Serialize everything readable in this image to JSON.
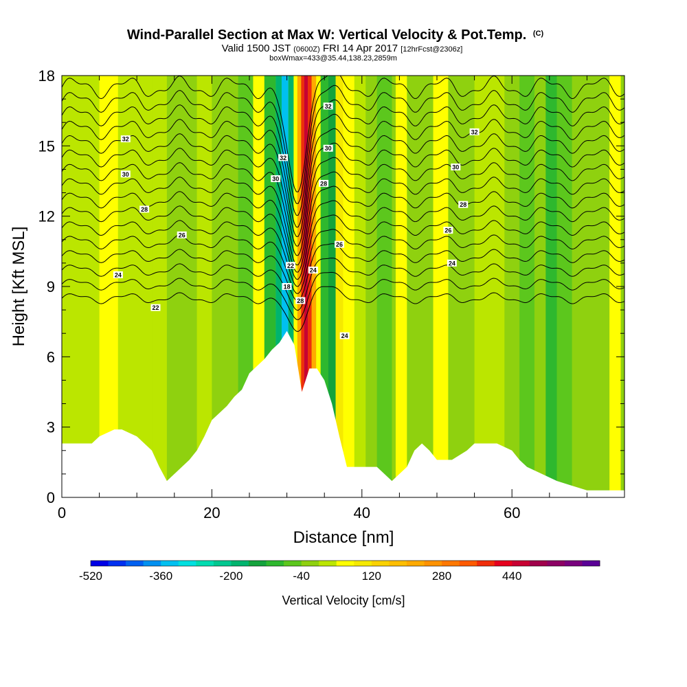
{
  "chart_data": {
    "type": "heatmap",
    "title": "Wind-Parallel Section at Max W: Vertical Velocity & Pot.Temp.",
    "title_mark": "(C)",
    "subtitle": {
      "valid_prefix": "Valid 1500 JST",
      "utc": "(0600Z)",
      "date": "FRI 14 Apr 2017",
      "forecast": "[12hrFcst@2306z]",
      "box": "boxWmax=433@35.44,138.23,2859m"
    },
    "xlabel": "Distance [nm]",
    "ylabel": "Height [Kft MSL]",
    "xlim": [
      0,
      75
    ],
    "ylim": [
      0,
      18
    ],
    "x_ticks": [
      0,
      20,
      40,
      60
    ],
    "y_ticks": [
      0,
      3,
      6,
      9,
      12,
      15,
      18
    ],
    "grid": false,
    "background_field_value": -20,
    "velocity_columns": [
      {
        "x0": 0,
        "x1": 5,
        "w": 20
      },
      {
        "x0": 5,
        "x1": 7.5,
        "w": 40
      },
      {
        "x0": 7.5,
        "x1": 12,
        "w": 10
      },
      {
        "x0": 12,
        "x1": 14,
        "w": 30
      },
      {
        "x0": 18,
        "x1": 20,
        "w": 20
      },
      {
        "x0": 23.5,
        "x1": 25.5,
        "w": -60
      },
      {
        "x0": 25.5,
        "x1": 27,
        "w": 60
      },
      {
        "x0": 27,
        "x1": 28.5,
        "w": -100
      },
      {
        "x0": 28.5,
        "x1": 29.3,
        "w": -200
      },
      {
        "x0": 29.3,
        "x1": 30.2,
        "w": -360
      },
      {
        "x0": 30.2,
        "x1": 30.9,
        "w": -200
      },
      {
        "x0": 30.9,
        "x1": 31.4,
        "w": 60
      },
      {
        "x0": 31.4,
        "x1": 31.9,
        "w": 220
      },
      {
        "x0": 31.9,
        "x1": 32.3,
        "w": 380
      },
      {
        "x0": 32.3,
        "x1": 32.8,
        "w": 440
      },
      {
        "x0": 32.8,
        "x1": 33.3,
        "w": 380
      },
      {
        "x0": 33.3,
        "x1": 33.9,
        "w": 220
      },
      {
        "x0": 33.9,
        "x1": 34.5,
        "w": 60
      },
      {
        "x0": 34.5,
        "x1": 35.5,
        "w": -100
      },
      {
        "x0": 35.5,
        "x1": 36.5,
        "w": -160
      },
      {
        "x0": 36.5,
        "x1": 37.5,
        "w": 100
      },
      {
        "x0": 37.5,
        "x1": 39,
        "w": 40
      },
      {
        "x0": 39,
        "x1": 40.5,
        "w": 20
      },
      {
        "x0": 42,
        "x1": 44,
        "w": -60
      },
      {
        "x0": 44.5,
        "x1": 46,
        "w": 40
      },
      {
        "x0": 49.5,
        "x1": 51.5,
        "w": 60
      },
      {
        "x0": 55,
        "x1": 59,
        "w": 20
      },
      {
        "x0": 61,
        "x1": 63,
        "w": -60
      },
      {
        "x0": 64.5,
        "x1": 66,
        "w": -100
      },
      {
        "x0": 66,
        "x1": 68,
        "w": -60
      },
      {
        "x0": 70,
        "x1": 72,
        "w": -40
      },
      {
        "x0": 73,
        "x1": 74.5,
        "w": 40
      }
    ],
    "terrain": {
      "x": [
        0,
        4,
        5,
        7,
        8,
        10,
        11,
        12,
        13,
        14,
        15,
        16,
        17,
        18,
        19,
        20,
        21,
        22,
        23,
        24,
        25,
        26,
        27,
        28,
        29,
        30,
        31,
        32,
        33,
        34,
        35,
        36,
        37,
        38,
        40,
        42,
        43,
        44,
        46,
        47,
        48,
        49,
        50,
        52,
        54,
        55,
        58,
        60,
        61,
        62,
        64,
        66,
        68,
        70,
        72,
        74,
        75
      ],
      "height": [
        2.3,
        2.3,
        2.6,
        2.9,
        2.9,
        2.6,
        2.3,
        2.0,
        1.3,
        0.7,
        1.0,
        1.3,
        1.6,
        2.0,
        2.6,
        3.3,
        3.6,
        3.9,
        4.3,
        4.6,
        5.3,
        5.6,
        5.9,
        6.3,
        6.6,
        7.1,
        6.5,
        4.5,
        5.5,
        5.5,
        5.0,
        4.0,
        2.6,
        1.3,
        1.3,
        1.3,
        1.0,
        0.7,
        1.3,
        2.0,
        2.3,
        2.0,
        1.6,
        1.6,
        2.0,
        2.3,
        2.3,
        2.0,
        1.6,
        1.3,
        1.0,
        0.7,
        0.5,
        0.3,
        0.3,
        0.3,
        0.3
      ]
    },
    "isentropes": [
      {
        "base": 8.5,
        "amp": 1.5
      },
      {
        "base": 9.1,
        "amp": 1.6
      },
      {
        "base": 9.7,
        "amp": 1.8
      },
      {
        "base": 10.3,
        "amp": 2.0
      },
      {
        "base": 10.9,
        "amp": 2.3
      },
      {
        "base": 11.5,
        "amp": 2.6
      },
      {
        "base": 12.1,
        "amp": 2.9
      },
      {
        "base": 12.7,
        "amp": 3.2
      },
      {
        "base": 13.3,
        "amp": 3.5
      },
      {
        "base": 13.9,
        "amp": 3.7
      },
      {
        "base": 14.5,
        "amp": 3.9
      },
      {
        "base": 15.1,
        "amp": 4.1
      },
      {
        "base": 15.7,
        "amp": 4.3
      },
      {
        "base": 16.3,
        "amp": 4.4
      },
      {
        "base": 16.9,
        "amp": 4.5
      },
      {
        "base": 17.5,
        "amp": 4.6
      }
    ],
    "contour_labels": [
      {
        "text": "32",
        "x": 8.5,
        "y": 15.3
      },
      {
        "text": "30",
        "x": 8.5,
        "y": 13.8
      },
      {
        "text": "28",
        "x": 11,
        "y": 12.3
      },
      {
        "text": "26",
        "x": 16,
        "y": 11.2
      },
      {
        "text": "24",
        "x": 7.5,
        "y": 9.5
      },
      {
        "text": "22",
        "x": 12.5,
        "y": 8.1
      },
      {
        "text": "32",
        "x": 29.5,
        "y": 14.5
      },
      {
        "text": "30",
        "x": 28.5,
        "y": 13.6
      },
      {
        "text": "22",
        "x": 30.5,
        "y": 9.9
      },
      {
        "text": "18",
        "x": 30,
        "y": 9.0
      },
      {
        "text": "28",
        "x": 31.8,
        "y": 8.4
      },
      {
        "text": "24",
        "x": 33.5,
        "y": 9.7
      },
      {
        "text": "32",
        "x": 35.5,
        "y": 16.7
      },
      {
        "text": "30",
        "x": 35.5,
        "y": 14.9
      },
      {
        "text": "28",
        "x": 34.9,
        "y": 13.4
      },
      {
        "text": "26",
        "x": 37,
        "y": 10.8
      },
      {
        "text": "24",
        "x": 37.7,
        "y": 6.9
      },
      {
        "text": "32",
        "x": 55,
        "y": 15.6
      },
      {
        "text": "30",
        "x": 52.5,
        "y": 14.1
      },
      {
        "text": "28",
        "x": 53.5,
        "y": 12.5
      },
      {
        "text": "26",
        "x": 51.5,
        "y": 11.4
      },
      {
        "text": "24",
        "x": 52,
        "y": 10.0
      }
    ],
    "colorbar": {
      "label": "Vertical Velocity [cm/s]",
      "min": -520,
      "step": 40,
      "ticks": [
        "-520",
        "-360",
        "-200",
        "-40",
        "120",
        "280",
        "440"
      ],
      "colors": [
        "#0000e6",
        "#0030f0",
        "#0060f0",
        "#0090f0",
        "#00c0f0",
        "#00e0e0",
        "#00dcb0",
        "#00c890",
        "#00b46e",
        "#14a33c",
        "#2eb82e",
        "#5cc71d",
        "#8fd10f",
        "#bbe600",
        "#ffff00",
        "#f5e900",
        "#fad200",
        "#ffbe00",
        "#ffaa00",
        "#ff9200",
        "#ff7800",
        "#ff5a00",
        "#f02d0a",
        "#e6001e",
        "#c80032",
        "#a0004b",
        "#8c0064",
        "#78007d",
        "#5a0096"
      ]
    }
  }
}
